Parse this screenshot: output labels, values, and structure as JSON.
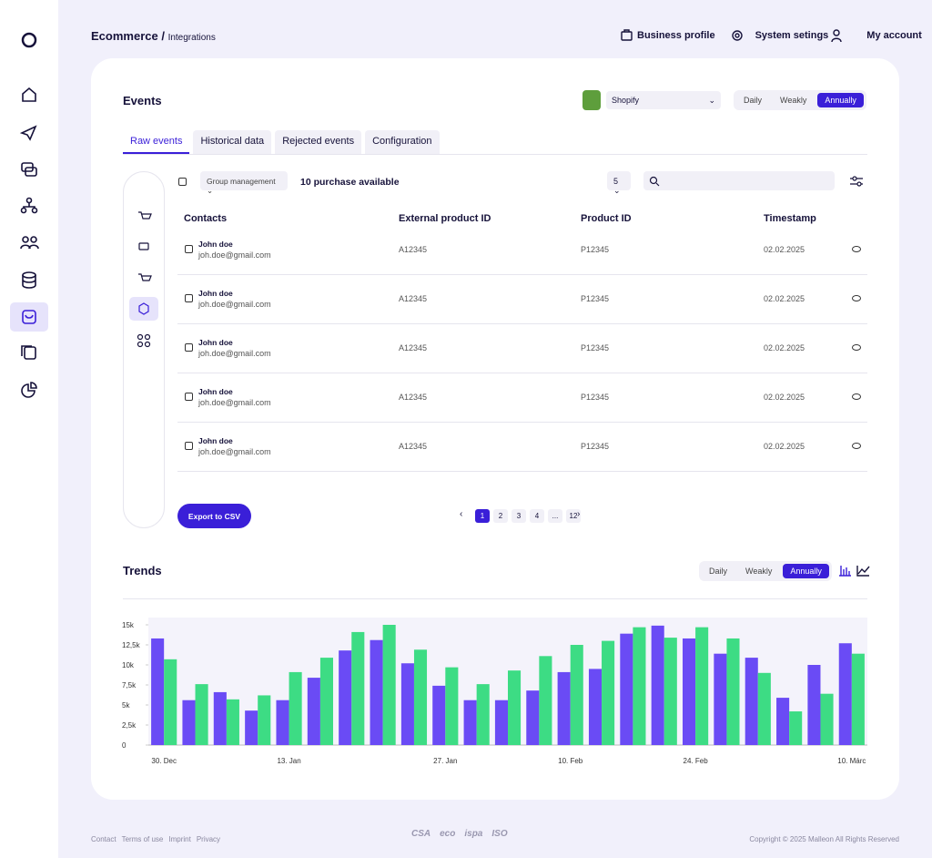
{
  "header": {
    "breadcrumb": "Ecommerce /",
    "page": "Integrations",
    "nav": [
      "Business profile",
      "System setings",
      "My account"
    ]
  },
  "events": {
    "title": "Events",
    "store": "Shopify",
    "periods": [
      "Daily",
      "Weakly",
      "Annually"
    ],
    "tabs": [
      "Raw events",
      "Historical data",
      "Rejected events",
      "Configuration"
    ],
    "group": "Group management",
    "available": "10 purchase available",
    "page_size": "5",
    "table": {
      "columns": [
        "Contacts",
        "External product ID",
        "Product ID",
        "Timestamp"
      ],
      "rows": [
        {
          "name": "John doe",
          "email": "joh.doe@gmail.com",
          "external_id": "A12345",
          "product_id": "P12345",
          "timestamp": "02.02.2025"
        },
        {
          "name": "John doe",
          "email": "joh.doe@gmail.com",
          "external_id": "A12345",
          "product_id": "P12345",
          "timestamp": "02.02.2025"
        },
        {
          "name": "John doe",
          "email": "joh.doe@gmail.com",
          "external_id": "A12345",
          "product_id": "P12345",
          "timestamp": "02.02.2025"
        },
        {
          "name": "John doe",
          "email": "joh.doe@gmail.com",
          "external_id": "A12345",
          "product_id": "P12345",
          "timestamp": "02.02.2025"
        },
        {
          "name": "John doe",
          "email": "joh.doe@gmail.com",
          "external_id": "A12345",
          "product_id": "P12345",
          "timestamp": "02.02.2025"
        }
      ]
    },
    "export": "Export to CSV",
    "pages": [
      "1",
      "2",
      "3",
      "4",
      "...",
      "12"
    ]
  },
  "trends": {
    "title": "Trends",
    "periods": [
      "Daily",
      "Weakly",
      "Annually"
    ]
  },
  "chart_data": {
    "type": "bar",
    "categories": [
      "30. Dec",
      null,
      null,
      null,
      "13. Jan",
      null,
      null,
      null,
      null,
      "27. Jan",
      null,
      null,
      null,
      "10. Feb",
      null,
      null,
      null,
      "24. Feb",
      null,
      null,
      null,
      null,
      "10. Márc"
    ],
    "series": [
      {
        "color": "#6a4bf5",
        "values": [
          13300,
          5600,
          6600,
          4300,
          5600,
          8400,
          11800,
          13100,
          10200,
          7400,
          5600,
          5600,
          6800,
          9100,
          9500,
          13900,
          14900,
          13300,
          11400,
          10900,
          5900,
          10000,
          12700
        ]
      },
      {
        "color": "#3ddc84",
        "values": [
          10700,
          7600,
          5700,
          6200,
          9100,
          10900,
          14100,
          15000,
          11900,
          9700,
          7600,
          9300,
          11100,
          12500,
          13000,
          14700,
          13400,
          14700,
          13300,
          9000,
          4200,
          6400,
          11400
        ]
      }
    ],
    "ylim": [
      0,
      15000
    ],
    "yticks": [
      0,
      {
        "value": 2500,
        "label": "2,5k"
      },
      {
        "value": 5000,
        "label": "5k"
      },
      {
        "value": 7500,
        "label": "7,5k"
      },
      {
        "value": 10000,
        "label": "10k"
      },
      {
        "value": 12500,
        "label": "12,5k"
      },
      {
        "value": 15000,
        "label": "15k"
      }
    ]
  },
  "footer": {
    "links": [
      "Contact",
      "Terms of use",
      "Imprint",
      "Privacy"
    ],
    "logos": [
      "CSA",
      "eco",
      "ispa",
      "ISO"
    ],
    "copyright": "Copyright © 2025 Malleon All Rights Reserved"
  }
}
